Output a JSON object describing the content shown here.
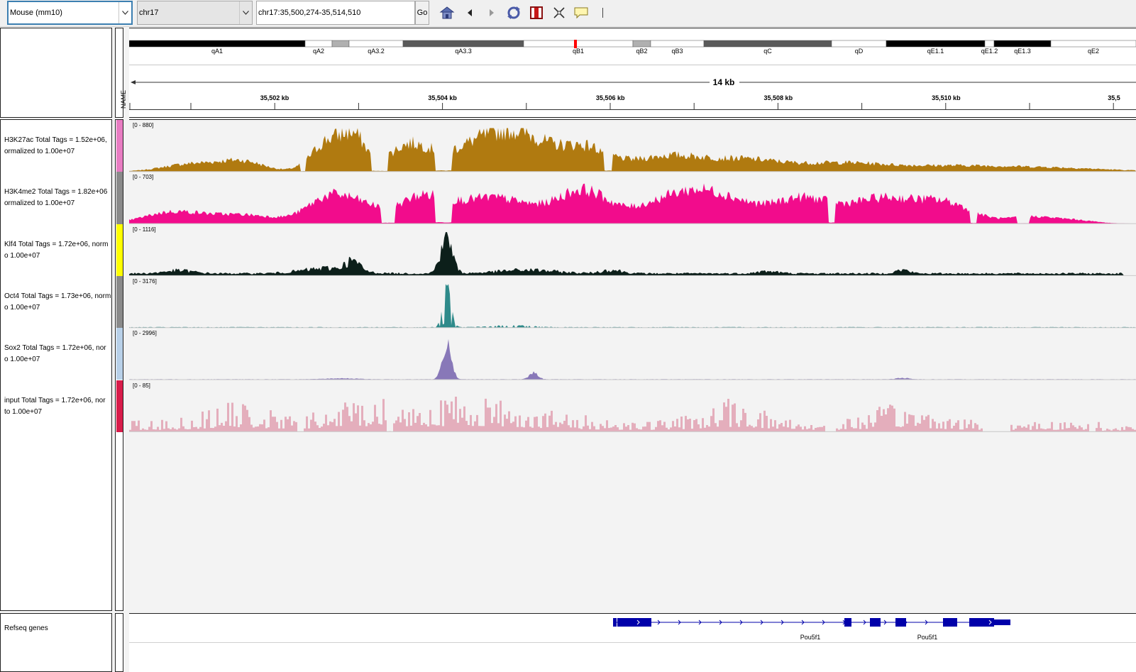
{
  "toolbar": {
    "genome": "Mouse (mm10)",
    "chromosome": "chr17",
    "locus": "chr17:35,500,274-35,514,510",
    "go_label": "Go",
    "icons": [
      "home-icon",
      "back-icon",
      "forward-icon",
      "refresh-icon",
      "region-of-interest-icon",
      "fit-window-icon",
      "popup-text-icon"
    ]
  },
  "header": {
    "name_column_label": "NAME"
  },
  "ideogram": {
    "bands": [
      {
        "name": "qA1",
        "stain": "black"
      },
      {
        "name": "qA2",
        "stain": "white"
      },
      {
        "name": "",
        "stain": "lightgray"
      },
      {
        "name": "qA3.2",
        "stain": "white"
      },
      {
        "name": "qA3.3",
        "stain": "darkgray"
      },
      {
        "name": "qB1",
        "stain": "white"
      },
      {
        "name": "qB2",
        "stain": "lightgray"
      },
      {
        "name": "qB3",
        "stain": "white"
      },
      {
        "name": "qC",
        "stain": "darkgray"
      },
      {
        "name": "qD",
        "stain": "white"
      },
      {
        "name": "qE1.1",
        "stain": "black"
      },
      {
        "name": "qE1.2",
        "stain": "white"
      },
      {
        "name": "qE1.3",
        "stain": "black"
      },
      {
        "name": "qE2",
        "stain": "white"
      }
    ],
    "current_region_color": "#ff0000"
  },
  "ruler": {
    "span_label": "14 kb",
    "tick_labels": [
      "35,502 kb",
      "35,504 kb",
      "35,506 kb",
      "35,508 kb",
      "35,510 kb",
      "35,5"
    ]
  },
  "tracks": [
    {
      "name": "H3K27ac Total Tags = 1.52e+06,\normalized to 1.00e+07",
      "range": "[0 - 880]",
      "color": "#b07a10",
      "attr_color": "#e87cc2",
      "profile": "broad1"
    },
    {
      "name": "H3K4me2 Total Tags = 1.82e+06\normalized to 1.00e+07",
      "range": "[0 - 703]",
      "color": "#f20c8c",
      "attr_color": "#8a8a8a",
      "profile": "broad2"
    },
    {
      "name": "Klf4 Total Tags = 1.72e+06, norm\no 1.00e+07",
      "range": "[0 - 1116]",
      "color": "#0c1f1a",
      "attr_color": "#ffff00",
      "profile": "peak_klf4"
    },
    {
      "name": "Oct4 Total Tags = 1.73e+06, norm\no 1.00e+07",
      "range": "[0 - 3176]",
      "color": "#2e8a8a",
      "attr_color": "#8a8a8a",
      "profile": "peak_oct4"
    },
    {
      "name": "Sox2 Total Tags = 1.72e+06, nor\no 1.00e+07",
      "range": "[0 - 2996]",
      "color": "#8878b8",
      "attr_color": "#b8d0e8",
      "profile": "peak_sox2"
    },
    {
      "name": "input Total Tags = 1.72e+06, nor\nto 1.00e+07",
      "range": "[0 - 85]",
      "color": "#e4aebc",
      "attr_color": "#d81c4a",
      "profile": "input"
    }
  ],
  "features": {
    "track_name": "Refseq genes",
    "gene_color": "#0000aa",
    "gene_labels": [
      "Pou5f1",
      "Pou5f1"
    ]
  }
}
